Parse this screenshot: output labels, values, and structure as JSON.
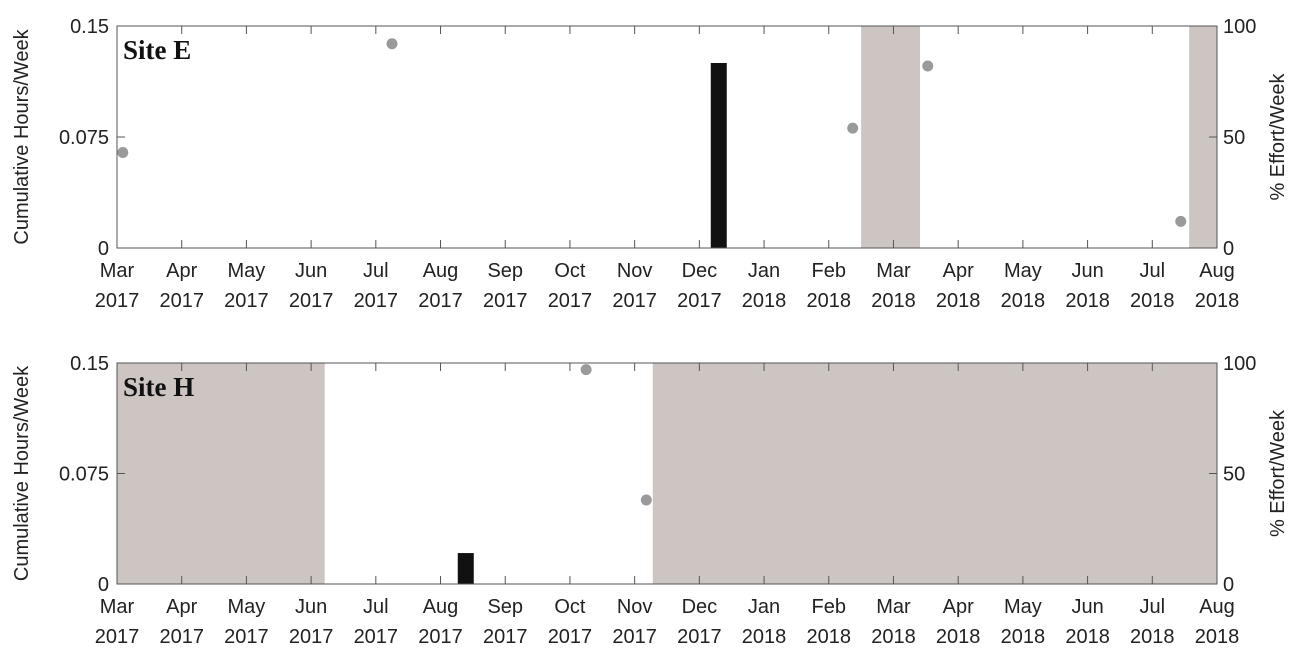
{
  "chart_data": [
    {
      "type": "bar",
      "annotation": "Site E",
      "ylabel": "Cumulative Hours/Week",
      "y2label": "% Effort/Week",
      "xlim": [
        0,
        17
      ],
      "xticks": [
        {
          "value": 0,
          "label": "Mar 2017"
        },
        {
          "value": 1,
          "label": "Apr 2017"
        },
        {
          "value": 2,
          "label": "May 2017"
        },
        {
          "value": 3,
          "label": "Jun 2017"
        },
        {
          "value": 4,
          "label": "Jul 2017"
        },
        {
          "value": 5,
          "label": "Aug 2017"
        },
        {
          "value": 6,
          "label": "Sep 2017"
        },
        {
          "value": 7,
          "label": "Oct 2017"
        },
        {
          "value": 8,
          "label": "Nov 2017"
        },
        {
          "value": 9,
          "label": "Dec 2017"
        },
        {
          "value": 10,
          "label": "Jan 2018"
        },
        {
          "value": 11,
          "label": "Feb 2018"
        },
        {
          "value": 12,
          "label": "Mar 2018"
        },
        {
          "value": 13,
          "label": "Apr 2018"
        },
        {
          "value": 14,
          "label": "May 2018"
        },
        {
          "value": 15,
          "label": "Jun 2018"
        },
        {
          "value": 16,
          "label": "Jul 2018"
        },
        {
          "value": 17,
          "label": "Aug 2018"
        }
      ],
      "ylim": [
        0,
        0.15
      ],
      "yticks": [
        0,
        0.075,
        0.15
      ],
      "y2lim": [
        0,
        100
      ],
      "y2ticks": [
        0,
        50,
        100
      ],
      "shaded": {
        "color": "#cdc5c2",
        "ranges": [
          [
            11.5,
            12.41
          ],
          [
            16.57,
            17
          ]
        ]
      },
      "series": [
        {
          "type": "bar",
          "color": "#111111",
          "x": [
            9.3
          ],
          "values": [
            0.125
          ]
        },
        {
          "type": "scatter",
          "axis": "y2",
          "color": "#9a9a9a",
          "x": [
            0.09,
            4.25,
            11.37,
            12.53,
            16.44
          ],
          "values": [
            43,
            92,
            54,
            82,
            12
          ]
        }
      ]
    },
    {
      "type": "bar",
      "annotation": "Site H",
      "ylabel": "Cumulative Hours/Week",
      "y2label": "% Effort/Week",
      "xlim": [
        0,
        17
      ],
      "xticks": [
        {
          "value": 0,
          "label": "Mar 2017"
        },
        {
          "value": 1,
          "label": "Apr 2017"
        },
        {
          "value": 2,
          "label": "May 2017"
        },
        {
          "value": 3,
          "label": "Jun 2017"
        },
        {
          "value": 4,
          "label": "Jul 2017"
        },
        {
          "value": 5,
          "label": "Aug 2017"
        },
        {
          "value": 6,
          "label": "Sep 2017"
        },
        {
          "value": 7,
          "label": "Oct 2017"
        },
        {
          "value": 8,
          "label": "Nov 2017"
        },
        {
          "value": 9,
          "label": "Dec 2017"
        },
        {
          "value": 10,
          "label": "Jan 2018"
        },
        {
          "value": 11,
          "label": "Feb 2018"
        },
        {
          "value": 12,
          "label": "Mar 2018"
        },
        {
          "value": 13,
          "label": "Apr 2018"
        },
        {
          "value": 14,
          "label": "May 2018"
        },
        {
          "value": 15,
          "label": "Jun 2018"
        },
        {
          "value": 16,
          "label": "Jul 2018"
        },
        {
          "value": 17,
          "label": "Aug 2018"
        }
      ],
      "ylim": [
        0,
        0.15
      ],
      "yticks": [
        0,
        0.075,
        0.15
      ],
      "y2lim": [
        0,
        100
      ],
      "y2ticks": [
        0,
        50,
        100
      ],
      "shaded": {
        "color": "#cdc5c2",
        "ranges": [
          [
            0,
            3.21
          ],
          [
            8.28,
            17
          ]
        ]
      },
      "series": [
        {
          "type": "bar",
          "color": "#111111",
          "x": [
            5.39
          ],
          "values": [
            0.021
          ]
        },
        {
          "type": "scatter",
          "axis": "y2",
          "color": "#9a9a9a",
          "x": [
            7.25,
            8.18
          ],
          "values": [
            97,
            38
          ]
        }
      ]
    }
  ]
}
